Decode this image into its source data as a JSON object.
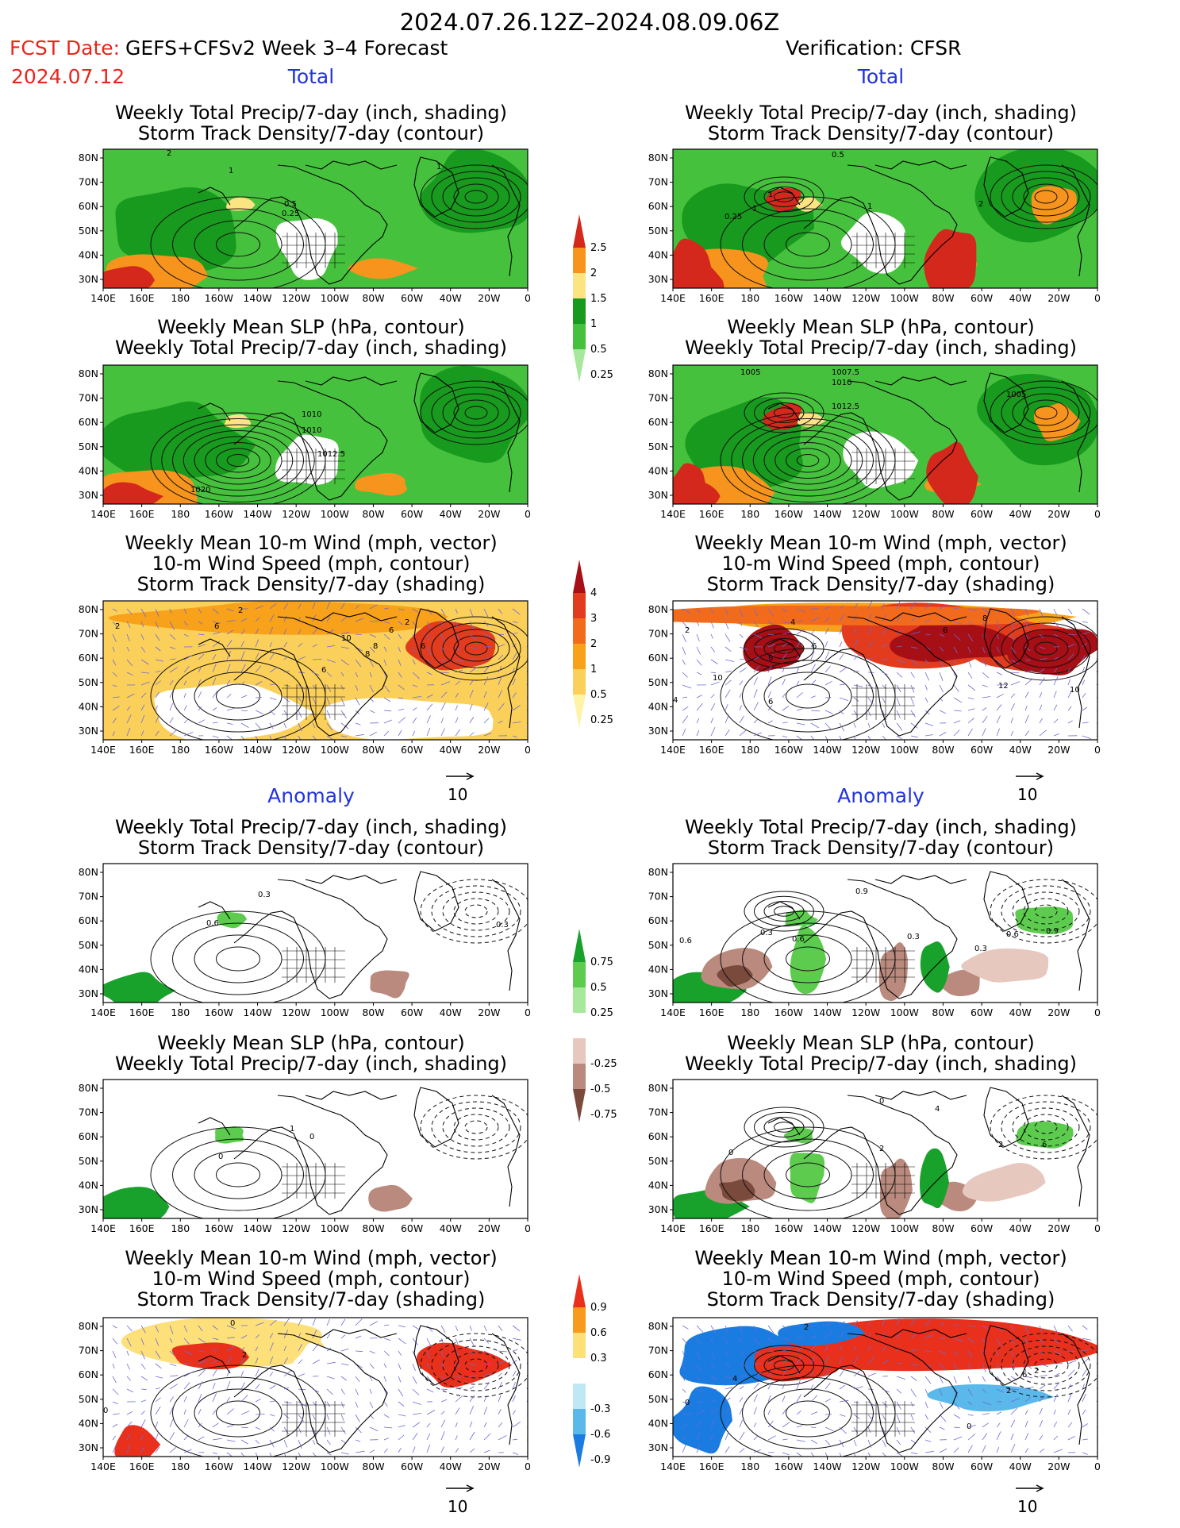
{
  "header": {
    "date_range": "2024.07.26.12Z–2024.08.09.06Z",
    "fcst_label": "FCST Date:",
    "fcst_title": "GEFS+CFSv2 Week 3–4 Forecast",
    "fcst_date": "2024.07.12",
    "verification": "Verification: CFSR"
  },
  "sections": {
    "total": "Total",
    "anomaly": "Anomaly"
  },
  "titles": {
    "precip_storm": [
      "Weekly Total Precip/7-day (inch, shading)",
      "Storm Track Density/7-day (contour)"
    ],
    "slp_precip": [
      "Weekly Mean SLP (hPa, contour)",
      "Weekly Total Precip/7-day (inch, shading)"
    ],
    "wind": [
      "Weekly Mean 10-m Wind (mph, vector)",
      "10-m Wind Speed (mph, contour)",
      "Storm Track Density/7-day (shading)"
    ]
  },
  "axes": {
    "lon_ticks": [
      "140E",
      "160E",
      "180",
      "160W",
      "140W",
      "120W",
      "100W",
      "80W",
      "60W",
      "40W",
      "20W",
      "0"
    ],
    "lat_ticks": [
      "80N",
      "70N",
      "60N",
      "50N",
      "40N",
      "30N"
    ]
  },
  "vector_ref": "10",
  "colorbars": {
    "precip_total": {
      "labels": [
        "2.5",
        "2",
        "1.5",
        "1",
        "0.5",
        "0.25"
      ],
      "colors": [
        "#d4281c",
        "#f7941d",
        "#fde483",
        "#189a1e",
        "#46c13d",
        "#a8e89d"
      ]
    },
    "storm_total": {
      "labels": [
        "4",
        "3",
        "2",
        "1",
        "0.5",
        "0.25"
      ],
      "colors": [
        "#a50f15",
        "#e23b1d",
        "#f26b1d",
        "#f8a11a",
        "#fbd05a",
        "#fff3a8"
      ]
    },
    "precip_anom": {
      "labels": [
        "0.75",
        "0.5",
        "0.25",
        "-0.25",
        "-0.5",
        "-0.75"
      ],
      "colors": [
        "#18a12b",
        "#5ccb4e",
        "#a8e89d",
        "#ffffff",
        "#e6c8bf",
        "#b98a7d",
        "#7a4a3d"
      ]
    },
    "storm_anom": {
      "labels": [
        "0.9",
        "0.6",
        "0.3",
        "-0.3",
        "-0.6",
        "-0.9"
      ],
      "colors": [
        "#e8301c",
        "#f79a1d",
        "#fde07a",
        "#ffffff",
        "#bfe8f5",
        "#5ab8ea",
        "#1a7ce0"
      ]
    }
  },
  "map_labels": {
    "p1": [
      "2",
      "1",
      "0.5",
      "0.25",
      "1"
    ],
    "p2": [
      "0.5",
      "1",
      "0.25",
      "1",
      "1",
      "2"
    ],
    "p3": [
      "1010",
      "1010",
      "1012.5",
      "1020"
    ],
    "p4": [
      "1005",
      "1007.5",
      "1010",
      "1012.5",
      "1005"
    ],
    "p5": [
      "2",
      "2",
      "6",
      "2",
      "10",
      "8",
      "6",
      "6",
      "8",
      "6"
    ],
    "p6": [
      "2",
      "8",
      "4",
      "6",
      "8",
      "10",
      "6",
      "12",
      "10",
      "6",
      "4"
    ],
    "p7": [
      "0.3",
      "0.6",
      "0.3"
    ],
    "p8": [
      "0.9",
      "0.6",
      "0.3",
      "0.6",
      "0.3",
      "0.6",
      "0.9",
      "0.3"
    ],
    "p9": [
      "0",
      "0",
      "1"
    ],
    "p10": [
      "0",
      "2",
      "4",
      "2",
      "6",
      "0"
    ],
    "p11": [
      "0",
      "2",
      "0"
    ],
    "p12": [
      "2",
      "0",
      "4",
      "6",
      "2",
      "2",
      "0"
    ]
  }
}
